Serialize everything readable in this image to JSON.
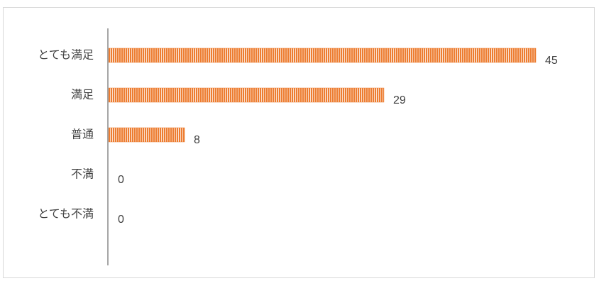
{
  "chart_data": {
    "type": "bar",
    "orientation": "horizontal",
    "categories": [
      "とても満足",
      "満足",
      "普通",
      "不満",
      "とても不満"
    ],
    "values": [
      45,
      29,
      8,
      0,
      0
    ],
    "title": "",
    "xlabel": "",
    "ylabel": "",
    "xlim": [
      0,
      45
    ],
    "grid": false,
    "legend": "none",
    "data_labels": true,
    "colors": {
      "bar": "#ed7d31",
      "bar_stripe": "#ffffff",
      "axis": "#a6a6a6",
      "text": "#404040"
    }
  }
}
